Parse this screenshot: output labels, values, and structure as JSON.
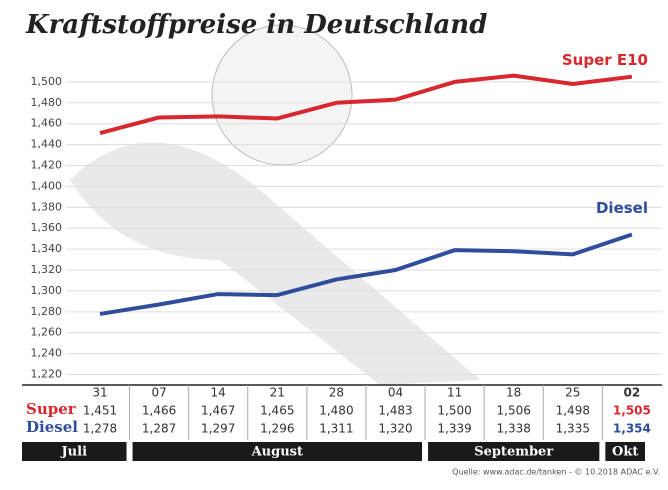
{
  "chart_data": {
    "type": "line",
    "title": "Kraftstoffpreise in Deutschland",
    "categories": [
      "31",
      "07",
      "14",
      "21",
      "28",
      "04",
      "11",
      "18",
      "25",
      "02"
    ],
    "months": [
      "Juli",
      "August",
      "September",
      "Okt"
    ],
    "table_row_labels": [
      "Super",
      "Diesel"
    ],
    "series": [
      {
        "name": "Super E10",
        "color": "#d7282f",
        "values": [
          1.451,
          1.466,
          1.467,
          1.465,
          1.48,
          1.483,
          1.5,
          1.506,
          1.498,
          1.505
        ],
        "value_labels": [
          "1,451",
          "1,466",
          "1,467",
          "1,465",
          "1,480",
          "1,483",
          "1,500",
          "1,506",
          "1,498",
          "1,505"
        ]
      },
      {
        "name": "Diesel",
        "color": "#2e4d9b",
        "values": [
          1.278,
          1.287,
          1.297,
          1.296,
          1.311,
          1.32,
          1.339,
          1.338,
          1.335,
          1.354
        ],
        "value_labels": [
          "1,278",
          "1,287",
          "1,297",
          "1,296",
          "1,311",
          "1,320",
          "1,339",
          "1,338",
          "1,335",
          "1,354"
        ]
      }
    ],
    "ylim": [
      1.21,
      1.52
    ],
    "yticks": [
      {
        "value": 1.22,
        "label": "1,220"
      },
      {
        "value": 1.24,
        "label": "1,240"
      },
      {
        "value": 1.26,
        "label": "1,260"
      },
      {
        "value": 1.28,
        "label": "1,280"
      },
      {
        "value": 1.3,
        "label": "1,300"
      },
      {
        "value": 1.32,
        "label": "1,320"
      },
      {
        "value": 1.34,
        "label": "1,340"
      },
      {
        "value": 1.36,
        "label": "1,360"
      },
      {
        "value": 1.38,
        "label": "1,380"
      },
      {
        "value": 1.4,
        "label": "1,400"
      },
      {
        "value": 1.42,
        "label": "1,420"
      },
      {
        "value": 1.44,
        "label": "1,440"
      },
      {
        "value": 1.46,
        "label": "1,460"
      },
      {
        "value": 1.48,
        "label": "1,480"
      },
      {
        "value": 1.5,
        "label": "1,500"
      }
    ],
    "grid": true,
    "source": "Quelle: www.adac.de/tanken - © 10.2018 ADAC e.V."
  }
}
